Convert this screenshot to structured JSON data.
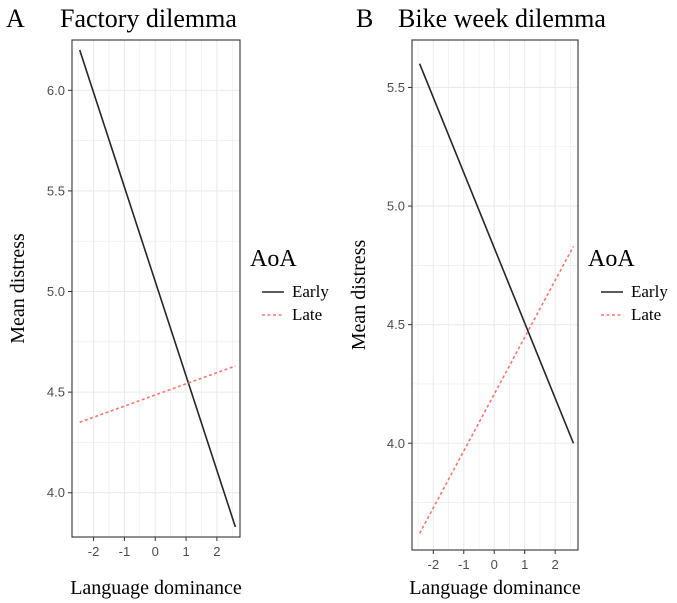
{
  "chart_data": [
    {
      "type": "line",
      "panel_label": "A",
      "title": "Factory dilemma",
      "xlabel": "Language dominance",
      "ylabel": "Mean distress",
      "xlim": [
        -2.7,
        2.75
      ],
      "ylim": [
        3.78,
        6.25
      ],
      "xticks": [
        -2,
        -1,
        0,
        1,
        2
      ],
      "yticks": [
        4.0,
        4.5,
        5.0,
        5.5,
        6.0
      ],
      "ytick_labels": [
        "4.0",
        "4.5",
        "5.0",
        "5.5",
        "6.0"
      ],
      "grid": true,
      "series": [
        {
          "name": "Early",
          "color": "#262626",
          "style": "solid",
          "x": [
            -2.45,
            2.6
          ],
          "y": [
            6.2,
            3.83
          ]
        },
        {
          "name": "Late",
          "color": "#f8766d",
          "style": "dotted",
          "x": [
            -2.45,
            2.6
          ],
          "y": [
            4.35,
            4.63
          ]
        }
      ],
      "legend": {
        "title": "AoA",
        "entries": [
          "Early",
          "Late"
        ],
        "position": "right"
      }
    },
    {
      "type": "line",
      "panel_label": "B",
      "title": "Bike week dilemma",
      "xlabel": "Language dominance",
      "ylabel": "Mean distress",
      "xlim": [
        -2.7,
        2.75
      ],
      "ylim": [
        3.55,
        5.7
      ],
      "xticks": [
        -2,
        -1,
        0,
        1,
        2
      ],
      "yticks": [
        4.0,
        4.5,
        5.0,
        5.5
      ],
      "ytick_labels": [
        "4.0",
        "4.5",
        "5.0",
        "5.5"
      ],
      "grid": true,
      "series": [
        {
          "name": "Early",
          "color": "#262626",
          "style": "solid",
          "x": [
            -2.45,
            2.6
          ],
          "y": [
            5.6,
            4.0
          ]
        },
        {
          "name": "Late",
          "color": "#f8766d",
          "style": "dotted",
          "x": [
            -2.45,
            2.6
          ],
          "y": [
            3.62,
            4.83
          ]
        }
      ],
      "legend": {
        "title": "AoA",
        "entries": [
          "Early",
          "Late"
        ],
        "position": "right"
      }
    }
  ]
}
